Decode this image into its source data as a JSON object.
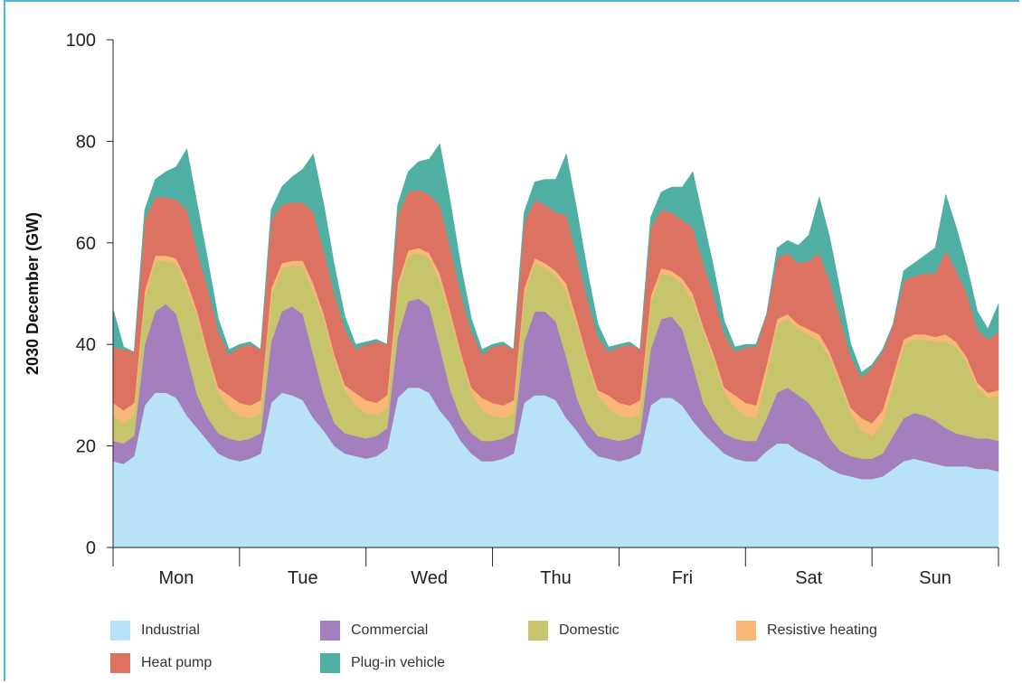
{
  "chart_data": {
    "type": "area",
    "stacked": true,
    "ylabel": "2030 December (GW)",
    "xlabel": "",
    "ylim": [
      0,
      100
    ],
    "yticks": [
      0,
      20,
      40,
      60,
      80,
      100
    ],
    "days": [
      "Mon",
      "Tue",
      "Wed",
      "Thu",
      "Fri",
      "Sat",
      "Sun"
    ],
    "x": [
      0,
      1,
      2,
      3,
      4,
      5,
      6,
      7,
      8,
      9,
      10,
      11,
      12,
      13,
      14,
      15,
      16,
      17,
      18,
      19,
      20,
      21,
      22,
      23,
      24,
      25,
      26,
      27,
      28,
      29,
      30,
      31,
      32,
      33,
      34,
      35,
      36,
      37,
      38,
      39,
      40,
      41,
      42,
      43,
      44,
      45,
      46,
      47,
      48,
      49,
      50,
      51,
      52,
      53,
      54,
      55,
      56,
      57,
      58,
      59,
      60,
      61,
      62,
      63,
      64,
      65,
      66,
      67,
      68,
      69,
      70,
      71,
      72,
      73,
      74,
      75,
      76,
      77,
      78,
      79,
      80,
      81,
      82,
      83,
      84
    ],
    "x_unit": "2-hour periods from Monday 00:00",
    "grid": false,
    "legend_position": "bottom",
    "series": [
      {
        "name": "Industrial",
        "color": "#b8e2f5",
        "values": [
          17.0,
          16.5,
          18.0,
          28.0,
          30.5,
          30.5,
          29.5,
          26.0,
          23.5,
          21.0,
          18.5,
          17.5,
          17.0,
          17.5,
          18.5,
          28.5,
          30.5,
          30.0,
          29.0,
          25.5,
          23.0,
          20.0,
          18.5,
          18.0,
          17.5,
          18.0,
          19.5,
          29.5,
          31.5,
          31.5,
          30.5,
          27.0,
          24.5,
          21.0,
          18.5,
          17.0,
          17.0,
          17.5,
          18.5,
          28.5,
          30.0,
          30.0,
          29.0,
          25.5,
          23.0,
          20.0,
          18.0,
          17.5,
          17.0,
          17.5,
          18.5,
          28.0,
          29.5,
          29.5,
          28.0,
          25.0,
          22.5,
          20.5,
          18.5,
          17.5,
          17.0,
          17.0,
          19.0,
          20.5,
          20.5,
          19.0,
          18.0,
          17.0,
          15.5,
          14.5,
          14.0,
          13.5,
          13.5,
          14.0,
          15.5,
          17.0,
          17.5,
          17.0,
          16.5,
          16.0,
          16.0,
          16.0,
          15.5,
          15.5,
          15.0
        ]
      },
      {
        "name": "Commercial",
        "color": "#a47fbd",
        "values": [
          4.0,
          4.0,
          4.0,
          12.0,
          16.0,
          17.5,
          16.5,
          12.0,
          6.5,
          4.5,
          4.0,
          4.0,
          4.0,
          4.0,
          4.0,
          12.0,
          16.0,
          17.5,
          17.0,
          12.5,
          7.0,
          4.5,
          4.0,
          4.0,
          4.0,
          4.0,
          4.0,
          12.0,
          17.0,
          17.5,
          17.0,
          12.5,
          6.5,
          4.5,
          4.0,
          4.0,
          4.0,
          4.0,
          4.0,
          12.0,
          16.5,
          16.5,
          15.5,
          12.0,
          6.5,
          4.5,
          4.0,
          4.0,
          4.0,
          4.0,
          4.0,
          11.0,
          15.5,
          16.0,
          15.0,
          11.0,
          6.0,
          4.5,
          4.0,
          4.0,
          4.0,
          4.0,
          6.5,
          10.0,
          11.0,
          11.0,
          10.5,
          8.5,
          6.0,
          4.5,
          4.0,
          4.0,
          4.0,
          4.5,
          6.5,
          8.5,
          9.0,
          9.0,
          8.5,
          7.5,
          6.5,
          6.0,
          6.0,
          6.0,
          6.0
        ]
      },
      {
        "name": "Domestic",
        "color": "#c7c46e",
        "values": [
          5.0,
          4.0,
          4.0,
          9.0,
          10.0,
          8.5,
          10.0,
          13.0,
          15.5,
          12.0,
          8.0,
          6.0,
          5.0,
          4.0,
          4.0,
          9.0,
          8.5,
          8.0,
          9.5,
          12.5,
          15.0,
          12.5,
          8.5,
          6.0,
          5.0,
          4.0,
          4.0,
          9.0,
          9.0,
          9.0,
          9.5,
          13.0,
          14.5,
          12.0,
          8.0,
          6.0,
          5.0,
          4.0,
          4.0,
          9.0,
          9.5,
          8.5,
          9.0,
          13.0,
          14.5,
          12.0,
          8.0,
          6.0,
          5.0,
          4.0,
          4.0,
          9.0,
          9.0,
          8.0,
          9.0,
          12.5,
          14.0,
          12.0,
          8.0,
          6.0,
          5.0,
          4.5,
          8.5,
          13.5,
          13.5,
          13.0,
          13.5,
          15.0,
          16.0,
          13.0,
          8.5,
          5.5,
          4.5,
          6.0,
          10.0,
          14.5,
          14.5,
          15.0,
          15.5,
          17.0,
          17.0,
          14.5,
          10.0,
          8.0,
          9.0
        ]
      },
      {
        "name": "Resistive heating",
        "color": "#f9b878",
        "values": [
          2.5,
          2.5,
          2.5,
          1.5,
          1.0,
          1.0,
          1.0,
          1.5,
          1.0,
          1.0,
          1.0,
          2.5,
          2.5,
          2.5,
          2.5,
          1.5,
          1.0,
          1.0,
          1.0,
          1.5,
          1.0,
          1.0,
          1.0,
          2.5,
          2.5,
          2.5,
          2.5,
          1.5,
          1.0,
          1.0,
          1.0,
          1.5,
          1.0,
          1.0,
          1.0,
          2.5,
          2.5,
          2.5,
          2.5,
          1.5,
          1.0,
          1.0,
          1.0,
          1.5,
          1.0,
          1.0,
          1.0,
          2.5,
          2.5,
          2.5,
          2.5,
          1.5,
          1.0,
          1.0,
          1.0,
          1.5,
          1.0,
          1.0,
          1.0,
          2.5,
          2.5,
          2.5,
          2.0,
          1.0,
          1.0,
          1.0,
          1.0,
          1.5,
          1.0,
          1.0,
          1.0,
          2.5,
          2.5,
          2.5,
          2.0,
          1.0,
          1.0,
          1.0,
          1.0,
          1.5,
          1.0,
          1.0,
          1.0,
          1.0,
          1.0
        ]
      },
      {
        "name": "Heat pump",
        "color": "#db7262",
        "values": [
          11.0,
          12.0,
          10.0,
          14.0,
          11.5,
          11.5,
          11.5,
          14.0,
          12.0,
          12.5,
          11.0,
          8.0,
          11.0,
          12.0,
          10.0,
          13.5,
          11.5,
          11.5,
          11.5,
          14.0,
          12.5,
          12.0,
          11.0,
          8.5,
          11.0,
          12.0,
          10.0,
          13.5,
          11.5,
          11.5,
          11.5,
          13.5,
          12.5,
          11.5,
          11.0,
          8.5,
          11.0,
          12.0,
          10.0,
          13.0,
          11.5,
          11.5,
          11.5,
          13.5,
          12.5,
          11.5,
          10.5,
          8.5,
          11.0,
          12.0,
          10.0,
          13.5,
          11.5,
          11.5,
          11.5,
          13.0,
          12.5,
          11.5,
          10.5,
          8.5,
          11.0,
          11.5,
          10.0,
          12.0,
          12.0,
          12.0,
          13.5,
          16.0,
          14.0,
          12.0,
          10.0,
          8.0,
          11.0,
          11.5,
          10.0,
          11.5,
          11.5,
          12.0,
          12.5,
          16.5,
          14.0,
          12.5,
          10.5,
          10.5,
          11.5
        ]
      },
      {
        "name": "Plug-in vehicle",
        "color": "#4fafa3",
        "values": [
          7.5,
          0.5,
          0.0,
          2.0,
          3.5,
          5.0,
          6.5,
          12.0,
          9.0,
          5.5,
          2.5,
          1.0,
          0.5,
          0.5,
          0.0,
          2.0,
          3.5,
          5.0,
          6.5,
          11.5,
          9.0,
          5.5,
          2.5,
          1.0,
          0.5,
          0.5,
          0.0,
          2.0,
          4.0,
          5.5,
          7.0,
          12.0,
          9.0,
          5.5,
          2.5,
          1.0,
          0.5,
          0.5,
          0.0,
          2.0,
          3.5,
          5.0,
          6.5,
          12.0,
          9.0,
          5.5,
          2.5,
          1.0,
          0.5,
          0.5,
          0.0,
          2.0,
          3.5,
          5.0,
          6.5,
          11.0,
          8.5,
          5.5,
          2.5,
          1.0,
          0.5,
          0.5,
          0.0,
          2.0,
          2.5,
          3.5,
          5.0,
          11.0,
          8.5,
          5.5,
          2.5,
          1.0,
          0.5,
          0.5,
          0.0,
          2.0,
          2.5,
          3.5,
          5.0,
          11.0,
          8.5,
          5.5,
          3.5,
          2.0,
          5.5
        ]
      }
    ]
  }
}
